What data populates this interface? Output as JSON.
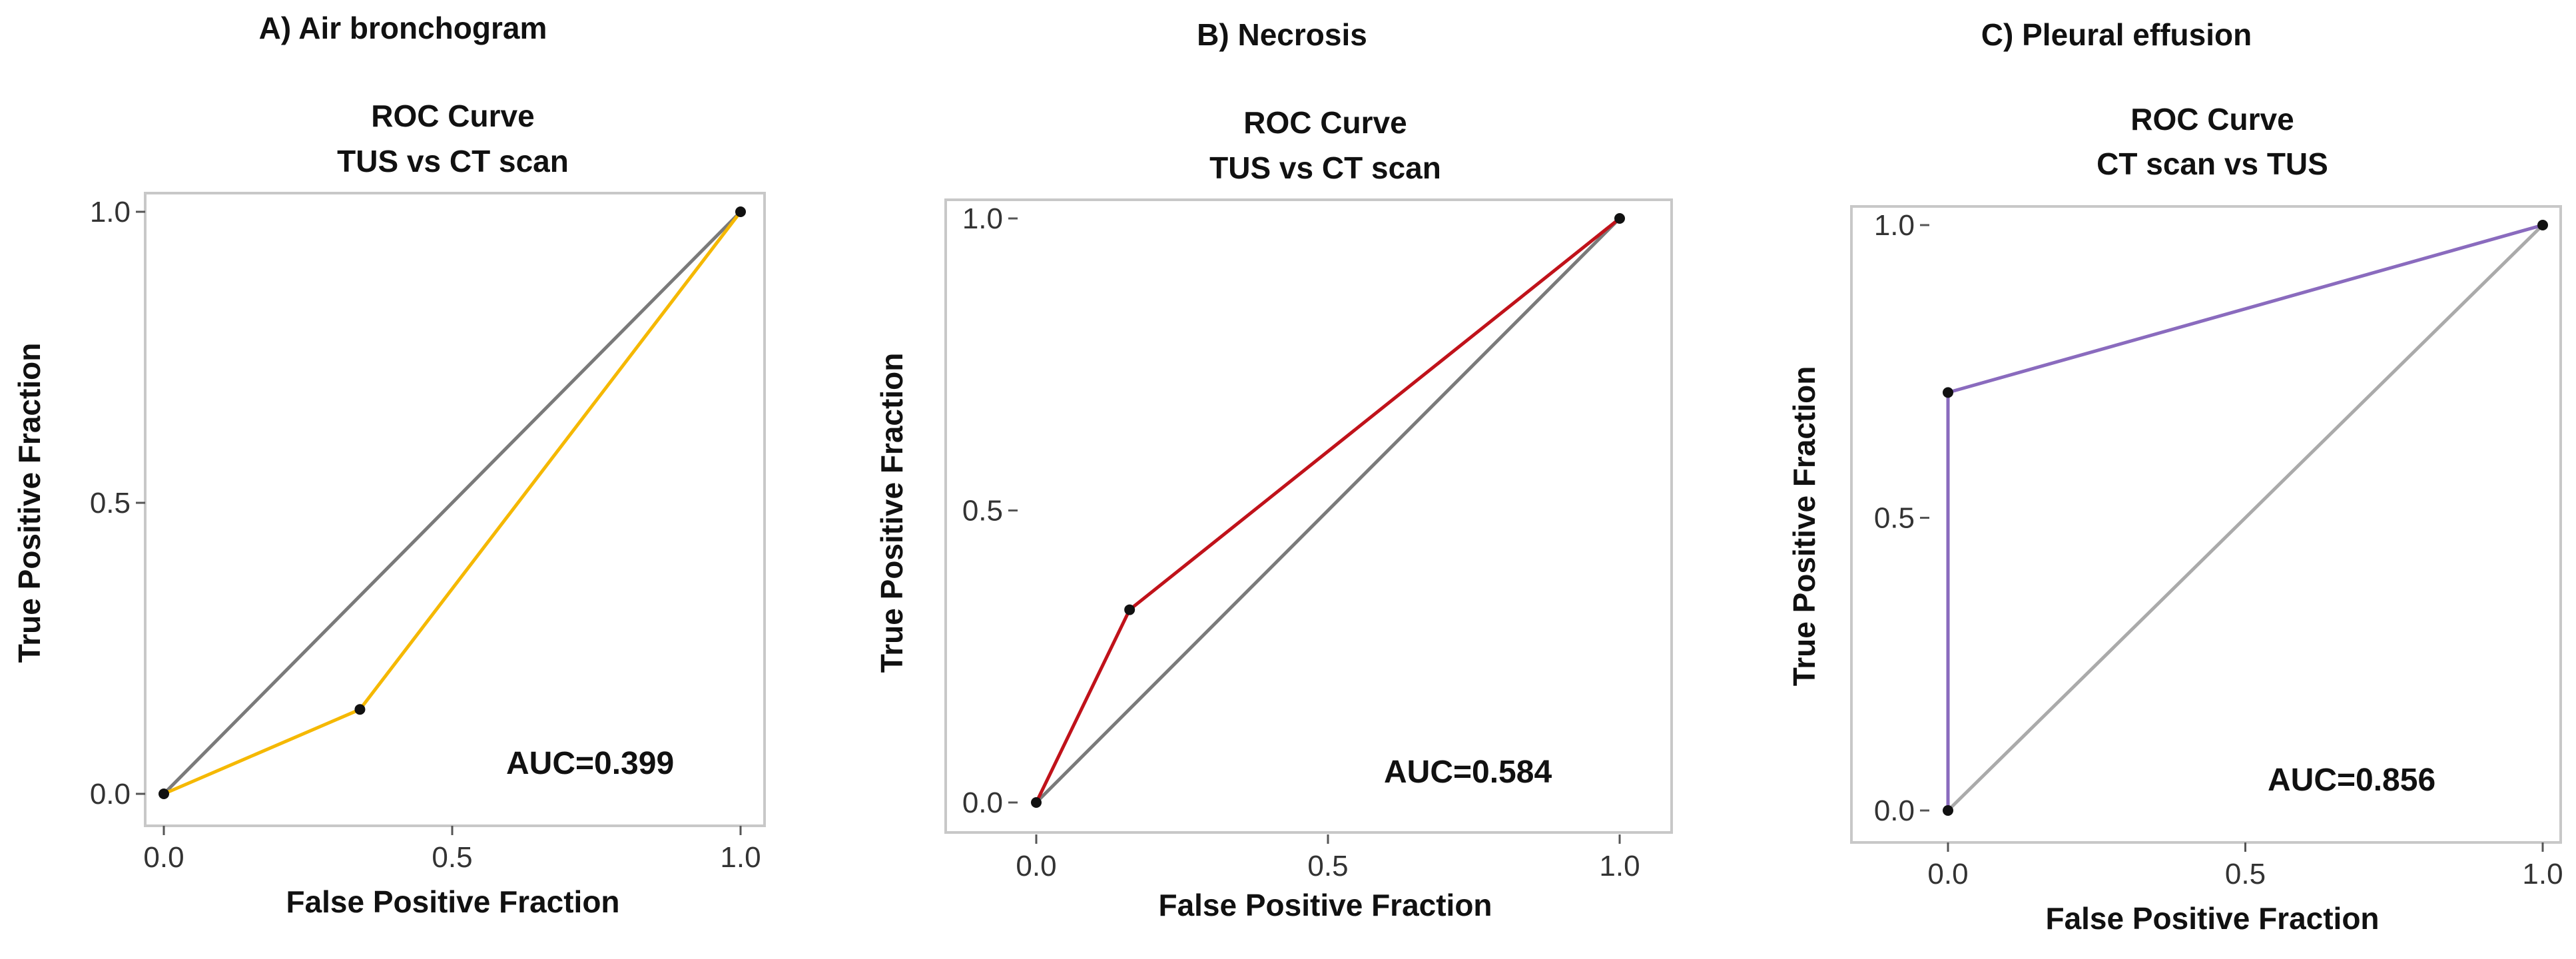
{
  "chart_data": [
    {
      "type": "line",
      "panel_label": "A) Air bronchogram",
      "title": "ROC Curve",
      "subtitle": "TUS vs CT scan",
      "xlabel": "False Positive Fraction",
      "ylabel": "True Positive Fraction",
      "xlim": [
        0,
        1
      ],
      "ylim": [
        0,
        1
      ],
      "xticks": [
        "0.0",
        "0.5",
        "1.0"
      ],
      "yticks": [
        "0.0",
        "0.5",
        "1.0"
      ],
      "auc_text": "AUC=0.399",
      "series": [
        {
          "role": "roc",
          "color": "#f5b800",
          "x": [
            0,
            0.34,
            1
          ],
          "y": [
            0,
            0.145,
            1
          ]
        },
        {
          "role": "reference",
          "color": "#7a7a7a",
          "x": [
            0,
            1
          ],
          "y": [
            0,
            1
          ]
        }
      ]
    },
    {
      "type": "line",
      "panel_label": "B) Necrosis",
      "title": "ROC Curve",
      "subtitle": "TUS vs CT scan",
      "xlabel": "False Positive Fraction",
      "ylabel": "True Positive Fraction",
      "xlim": [
        0,
        1
      ],
      "ylim": [
        0,
        1
      ],
      "xticks": [
        "0.0",
        "0.5",
        "1.0"
      ],
      "yticks": [
        "0.0",
        "0.5",
        "1.0"
      ],
      "auc_text": "AUC=0.584",
      "series": [
        {
          "role": "roc",
          "color": "#c0121a",
          "x": [
            0,
            0.16,
            1
          ],
          "y": [
            0,
            0.33,
            1
          ]
        },
        {
          "role": "reference",
          "color": "#7a7a7a",
          "x": [
            0,
            1
          ],
          "y": [
            0,
            1
          ]
        }
      ]
    },
    {
      "type": "line",
      "panel_label": "C) Pleural effusion",
      "title": "ROC Curve",
      "subtitle": "CT scan vs TUS",
      "xlabel": "False Positive Fraction",
      "ylabel": "True Positive Fraction",
      "xlim": [
        0,
        1
      ],
      "ylim": [
        0,
        1
      ],
      "xticks": [
        "0.0",
        "0.5",
        "1.0"
      ],
      "yticks": [
        "0.0",
        "0.5",
        "1.0"
      ],
      "auc_text": "AUC=0.856",
      "series": [
        {
          "role": "roc",
          "color": "#8a6bbe",
          "x": [
            0,
            0,
            1
          ],
          "y": [
            0,
            0.714,
            1
          ]
        },
        {
          "role": "reference",
          "color": "#aaaaaa",
          "x": [
            0,
            1
          ],
          "y": [
            0,
            1
          ]
        }
      ]
    }
  ]
}
